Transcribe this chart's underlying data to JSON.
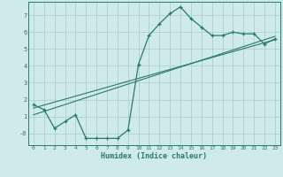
{
  "xlabel": "Humidex (Indice chaleur)",
  "bg_color": "#ceeaea",
  "grid_color": "#b0d0d0",
  "line_color": "#2a7a6a",
  "xlim": [
    -0.5,
    23.5
  ],
  "ylim": [
    -0.7,
    7.8
  ],
  "xticks": [
    0,
    1,
    2,
    3,
    4,
    5,
    6,
    7,
    8,
    9,
    10,
    11,
    12,
    13,
    14,
    15,
    16,
    17,
    18,
    19,
    20,
    21,
    22,
    23
  ],
  "yticks": [
    0,
    1,
    2,
    3,
    4,
    5,
    6,
    7
  ],
  "ytick_labels": [
    "-0",
    "1",
    "2",
    "3",
    "4",
    "5",
    "6",
    "7"
  ],
  "curve1_x": [
    0,
    1,
    2,
    3,
    4,
    5,
    6,
    7,
    8,
    9,
    10,
    11,
    12,
    13,
    14,
    15,
    16,
    17,
    18,
    19,
    20,
    21,
    22,
    23
  ],
  "curve1_y": [
    1.7,
    1.4,
    0.3,
    0.7,
    1.1,
    -0.3,
    -0.3,
    -0.3,
    -0.3,
    0.2,
    4.1,
    5.8,
    6.5,
    7.1,
    7.5,
    6.8,
    6.3,
    5.8,
    5.8,
    6.0,
    5.9,
    5.9,
    5.3,
    5.6
  ],
  "line2_x": [
    0,
    23
  ],
  "line2_y": [
    1.5,
    5.55
  ],
  "line3_x": [
    0,
    23
  ],
  "line3_y": [
    1.1,
    5.75
  ]
}
